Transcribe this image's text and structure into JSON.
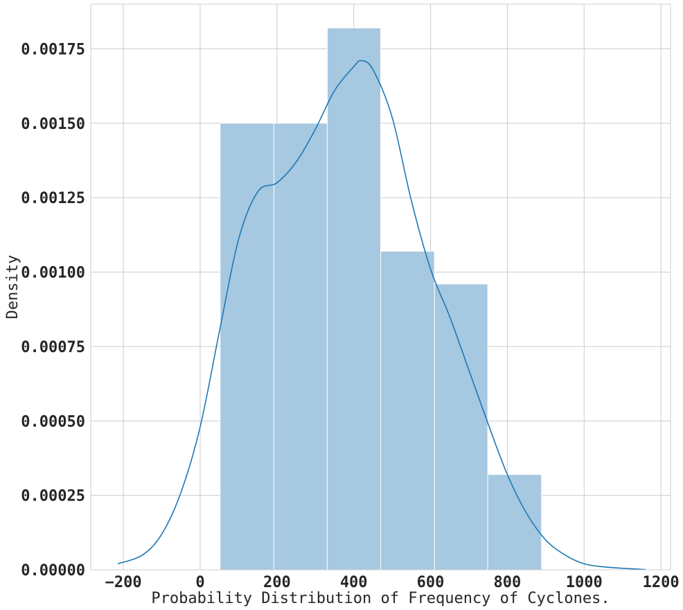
{
  "chart_data": {
    "type": "bar",
    "title": "",
    "xlabel": "Probability Distribution of Frequency of Cyclones.",
    "ylabel": "Density",
    "xlim": [
      -285,
      1225
    ],
    "ylim": [
      0,
      0.0019
    ],
    "grid": true,
    "xticks": [
      -200,
      0,
      200,
      400,
      600,
      800,
      1000,
      1200
    ],
    "xtick_labels": [
      "−200",
      "0",
      "200",
      "400",
      "600",
      "800",
      "1000",
      "1200"
    ],
    "yticks": [
      0,
      0.00025,
      0.0005,
      0.00075,
      0.001,
      0.00125,
      0.0015,
      0.00175
    ],
    "ytick_labels": [
      "0.00000",
      "0.00025",
      "0.00050",
      "0.00075",
      "0.00100",
      "0.00125",
      "0.00150",
      "0.00175"
    ],
    "histogram": {
      "bin_edges": [
        52,
        192,
        331,
        470,
        610,
        749,
        889
      ],
      "densities": [
        0.0015,
        0.0015,
        0.00182,
        0.00107,
        0.00096,
        0.00032
      ],
      "color": "#a6c8e0"
    },
    "kde": {
      "color": "#1f77b4",
      "x": [
        -215,
        -150,
        -100,
        -50,
        0,
        50,
        100,
        150,
        200,
        250,
        300,
        350,
        400,
        420,
        450,
        500,
        550,
        600,
        650,
        700,
        750,
        800,
        850,
        900,
        950,
        1000,
        1050,
        1100,
        1160
      ],
      "y": [
        2e-05,
        5e-05,
        0.00012,
        0.00026,
        0.00048,
        0.0008,
        0.00111,
        0.00127,
        0.0013,
        0.00137,
        0.00148,
        0.00161,
        0.00169,
        0.00171,
        0.00168,
        0.00152,
        0.00124,
        0.00101,
        0.00085,
        0.00067,
        0.00049,
        0.00032,
        0.00019,
        0.0001,
        5e-05,
        2e-05,
        1e-05,
        5e-06,
        1e-06
      ]
    }
  }
}
